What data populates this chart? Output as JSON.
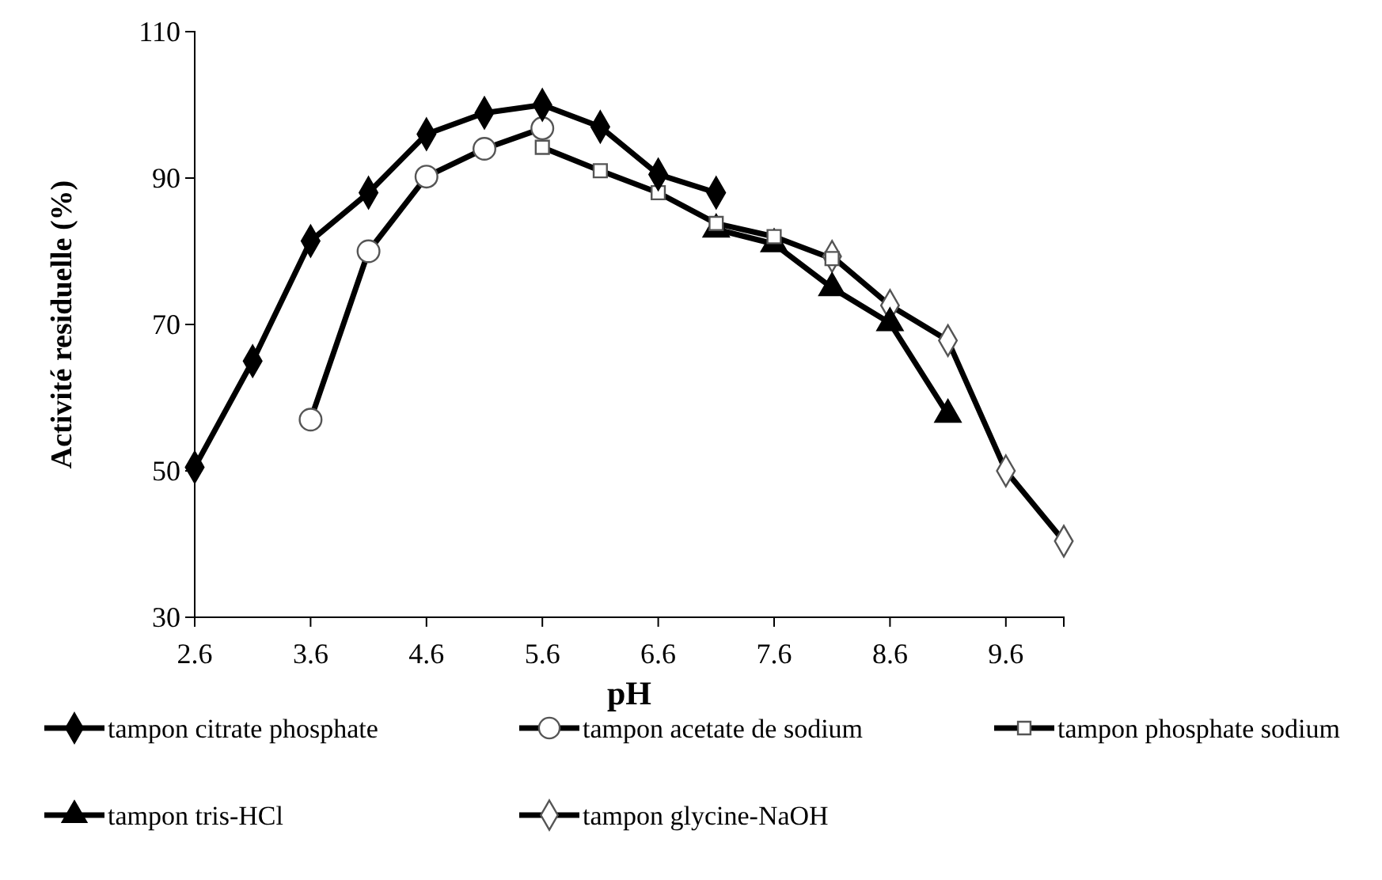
{
  "chart_data": {
    "type": "line",
    "xlabel": "pH",
    "ylabel": "Activité residuelle (%)",
    "xlim": [
      2.6,
      10.1
    ],
    "xticks": [
      2.6,
      3.6,
      4.6,
      5.6,
      6.6,
      7.6,
      8.6,
      9.6
    ],
    "ylim": [
      30,
      110
    ],
    "yticks": [
      30,
      50,
      70,
      90,
      110
    ],
    "grid": false,
    "legend": "bottom",
    "line_style": "solid",
    "series": [
      {
        "name": "tampon citrate phosphate",
        "color": "#000000",
        "marker": "diamond",
        "x": [
          2.6,
          3.1,
          3.6,
          4.1,
          4.6,
          5.1,
          5.6,
          6.1,
          6.6,
          7.1
        ],
        "values": [
          50.5,
          65,
          81.4,
          88,
          96,
          98.9,
          100,
          97,
          90.5,
          88
        ]
      },
      {
        "name": "tampon acetate de sodium",
        "color": "#000000",
        "marker": "circle",
        "x": [
          3.6,
          4.1,
          4.6,
          5.1,
          5.6
        ],
        "values": [
          57,
          80,
          90.2,
          94,
          96.8
        ]
      },
      {
        "name": "tampon phosphate sodium",
        "color": "#000000",
        "marker": "square",
        "x": [
          5.6,
          6.1,
          6.6,
          7.1,
          7.6,
          8.1
        ],
        "values": [
          94.2,
          91,
          88,
          83.8,
          82,
          79
        ]
      },
      {
        "name": "tampon tris-HCl",
        "color": "#000000",
        "marker": "triangle",
        "x": [
          7.1,
          7.6,
          8.1,
          8.6,
          9.1
        ],
        "values": [
          83,
          81,
          75,
          70.2,
          57.7
        ]
      },
      {
        "name": "tampon glycine-NaOH",
        "color": "#000000",
        "marker": "diamond",
        "x": [
          8.1,
          8.6,
          9.1,
          9.6,
          10.1
        ],
        "values": [
          79.3,
          72.6,
          67.8,
          50,
          40.4
        ]
      }
    ]
  }
}
